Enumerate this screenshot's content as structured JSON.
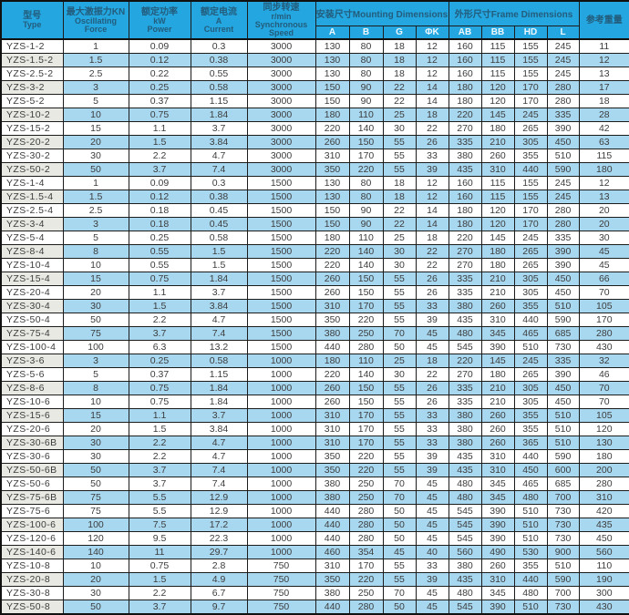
{
  "table": {
    "header": {
      "type": {
        "lines": [
          "型号",
          "Type"
        ]
      },
      "force": {
        "lines": [
          "最大激振力KN",
          "Oscillating",
          "Force"
        ]
      },
      "power": {
        "lines": [
          "额定功率",
          "kW",
          "Power"
        ]
      },
      "current": {
        "lines": [
          "额定电流",
          "A",
          "Current"
        ]
      },
      "speed": {
        "lines": [
          "同步转速",
          "r/min",
          "Synchronous",
          "Speed"
        ]
      },
      "mounting": {
        "label": "安装尺寸Mounting Dimensions",
        "subs": [
          "A",
          "B",
          "G",
          "ΦK"
        ]
      },
      "frame": {
        "label": "外形尺寸Frame Dimensions",
        "subs": [
          "AB",
          "BB",
          "HD",
          "L"
        ]
      },
      "weight": {
        "label": "参考重量"
      }
    },
    "rows": [
      [
        "YZS-1-2",
        "1",
        "0.09",
        "0.3",
        "3000",
        "130",
        "80",
        "18",
        "12",
        "160",
        "115",
        "155",
        "245",
        "11"
      ],
      [
        "YZS-1.5-2",
        "1.5",
        "0.12",
        "0.38",
        "3000",
        "130",
        "80",
        "18",
        "12",
        "160",
        "115",
        "155",
        "245",
        "12"
      ],
      [
        "YZS-2.5-2",
        "2.5",
        "0.22",
        "0.55",
        "3000",
        "130",
        "80",
        "18",
        "12",
        "160",
        "115",
        "155",
        "245",
        "13"
      ],
      [
        "YZS-3-2",
        "3",
        "0.25",
        "0.58",
        "3000",
        "150",
        "90",
        "22",
        "14",
        "180",
        "120",
        "170",
        "280",
        "17"
      ],
      [
        "YZS-5-2",
        "5",
        "0.37",
        "1.15",
        "3000",
        "150",
        "90",
        "22",
        "14",
        "180",
        "120",
        "170",
        "280",
        "18"
      ],
      [
        "YZS-10-2",
        "10",
        "0.75",
        "1.84",
        "3000",
        "180",
        "110",
        "25",
        "18",
        "220",
        "145",
        "245",
        "335",
        "28"
      ],
      [
        "YZS-15-2",
        "15",
        "1.1",
        "3.7",
        "3000",
        "220",
        "140",
        "30",
        "22",
        "270",
        "180",
        "265",
        "390",
        "42"
      ],
      [
        "YZS-20-2",
        "20",
        "1.5",
        "3.84",
        "3000",
        "260",
        "150",
        "55",
        "26",
        "335",
        "210",
        "305",
        "450",
        "63"
      ],
      [
        "YZS-30-2",
        "30",
        "2.2",
        "4.7",
        "3000",
        "310",
        "170",
        "55",
        "33",
        "380",
        "260",
        "355",
        "510",
        "115"
      ],
      [
        "YZS-50-2",
        "50",
        "3.7",
        "7.4",
        "3000",
        "350",
        "220",
        "55",
        "39",
        "435",
        "310",
        "440",
        "590",
        "180"
      ],
      [
        "YZS-1-4",
        "1",
        "0.09",
        "0.3",
        "1500",
        "130",
        "80",
        "18",
        "12",
        "160",
        "115",
        "155",
        "245",
        "12"
      ],
      [
        "YZS-1.5-4",
        "1.5",
        "0.12",
        "0.38",
        "1500",
        "130",
        "80",
        "18",
        "12",
        "160",
        "115",
        "155",
        "245",
        "13"
      ],
      [
        "YZS-2.5-4",
        "2.5",
        "0.18",
        "0.45",
        "1500",
        "150",
        "90",
        "22",
        "14",
        "180",
        "120",
        "170",
        "280",
        "20"
      ],
      [
        "YZS-3-4",
        "3",
        "0.18",
        "0.45",
        "1500",
        "150",
        "90",
        "22",
        "14",
        "180",
        "120",
        "170",
        "280",
        "20"
      ],
      [
        "YZS-5-4",
        "5",
        "0.25",
        "0.58",
        "1500",
        "180",
        "110",
        "25",
        "18",
        "220",
        "145",
        "245",
        "335",
        "30"
      ],
      [
        "YZS-8-4",
        "8",
        "0.55",
        "1.5",
        "1500",
        "220",
        "140",
        "30",
        "22",
        "270",
        "180",
        "265",
        "390",
        "45"
      ],
      [
        "YZS-10-4",
        "10",
        "0.55",
        "1.5",
        "1500",
        "220",
        "140",
        "30",
        "22",
        "270",
        "180",
        "265",
        "390",
        "45"
      ],
      [
        "YZS-15-4",
        "15",
        "0.75",
        "1.84",
        "1500",
        "260",
        "150",
        "55",
        "26",
        "335",
        "210",
        "305",
        "450",
        "66"
      ],
      [
        "YZS-20-4",
        "20",
        "1.1",
        "3.7",
        "1500",
        "260",
        "150",
        "55",
        "26",
        "335",
        "210",
        "305",
        "450",
        "70"
      ],
      [
        "YZS-30-4",
        "30",
        "1.5",
        "3.84",
        "1500",
        "310",
        "170",
        "55",
        "33",
        "380",
        "260",
        "355",
        "510",
        "105"
      ],
      [
        "YZS-50-4",
        "50",
        "2.2",
        "4.7",
        "1500",
        "350",
        "220",
        "55",
        "39",
        "435",
        "310",
        "440",
        "590",
        "170"
      ],
      [
        "YZS-75-4",
        "75",
        "3.7",
        "7.4",
        "1500",
        "380",
        "250",
        "70",
        "45",
        "480",
        "345",
        "465",
        "685",
        "280"
      ],
      [
        "YZS-100-4",
        "100",
        "6.3",
        "13.2",
        "1500",
        "440",
        "280",
        "50",
        "45",
        "545",
        "390",
        "510",
        "730",
        "430"
      ],
      [
        "YZS-3-6",
        "3",
        "0.25",
        "0.58",
        "1000",
        "180",
        "110",
        "25",
        "18",
        "220",
        "145",
        "245",
        "335",
        "32"
      ],
      [
        "YZS-5-6",
        "5",
        "0.37",
        "1.15",
        "1000",
        "220",
        "140",
        "30",
        "22",
        "270",
        "180",
        "265",
        "390",
        "46"
      ],
      [
        "YZS-8-6",
        "8",
        "0.75",
        "1.84",
        "1000",
        "260",
        "150",
        "55",
        "26",
        "335",
        "210",
        "305",
        "450",
        "70"
      ],
      [
        "YZS-10-6",
        "10",
        "0.75",
        "1.84",
        "1000",
        "260",
        "150",
        "55",
        "26",
        "335",
        "210",
        "305",
        "450",
        "70"
      ],
      [
        "YZS-15-6",
        "15",
        "1.1",
        "3.7",
        "1000",
        "310",
        "170",
        "55",
        "33",
        "380",
        "260",
        "355",
        "510",
        "105"
      ],
      [
        "YZS-20-6",
        "20",
        "1.5",
        "3.84",
        "1000",
        "310",
        "170",
        "55",
        "33",
        "380",
        "260",
        "355",
        "510",
        "120"
      ],
      [
        "YZS-30-6B",
        "30",
        "2.2",
        "4.7",
        "1000",
        "310",
        "170",
        "55",
        "33",
        "380",
        "260",
        "365",
        "510",
        "130"
      ],
      [
        "YZS-30-6",
        "30",
        "2.2",
        "4.7",
        "1000",
        "350",
        "220",
        "55",
        "39",
        "435",
        "310",
        "440",
        "590",
        "180"
      ],
      [
        "YZS-50-6B",
        "50",
        "3.7",
        "7.4",
        "1000",
        "350",
        "220",
        "55",
        "39",
        "435",
        "310",
        "450",
        "600",
        "200"
      ],
      [
        "YZS-50-6",
        "50",
        "3.7",
        "7.4",
        "1000",
        "380",
        "250",
        "70",
        "45",
        "480",
        "345",
        "465",
        "685",
        "280"
      ],
      [
        "YZS-75-6B",
        "75",
        "5.5",
        "12.9",
        "1000",
        "380",
        "250",
        "70",
        "45",
        "480",
        "345",
        "480",
        "700",
        "310"
      ],
      [
        "YZS-75-6",
        "75",
        "5.5",
        "12.9",
        "1000",
        "440",
        "280",
        "50",
        "45",
        "545",
        "390",
        "510",
        "730",
        "420"
      ],
      [
        "YZS-100-6",
        "100",
        "7.5",
        "17.2",
        "1000",
        "440",
        "280",
        "50",
        "45",
        "545",
        "390",
        "510",
        "730",
        "435"
      ],
      [
        "YZS-120-6",
        "120",
        "9.5",
        "22.3",
        "1000",
        "440",
        "280",
        "50",
        "45",
        "545",
        "390",
        "510",
        "730",
        "450"
      ],
      [
        "YZS-140-6",
        "140",
        "11",
        "29.7",
        "1000",
        "460",
        "354",
        "45",
        "40",
        "560",
        "490",
        "530",
        "900",
        "560"
      ],
      [
        "YZS-10-8",
        "10",
        "0.75",
        "2.8",
        "750",
        "310",
        "170",
        "55",
        "33",
        "380",
        "260",
        "355",
        "510",
        "110"
      ],
      [
        "YZS-20-8",
        "20",
        "1.5",
        "4.9",
        "750",
        "350",
        "220",
        "55",
        "39",
        "435",
        "310",
        "440",
        "590",
        "190"
      ],
      [
        "YZS-30-8",
        "30",
        "2.2",
        "6.7",
        "750",
        "380",
        "250",
        "70",
        "45",
        "480",
        "345",
        "480",
        "700",
        "300"
      ],
      [
        "YZS-50-8",
        "50",
        "3.7",
        "9.7",
        "750",
        "440",
        "280",
        "50",
        "45",
        "545",
        "390",
        "510",
        "730",
        "430"
      ]
    ]
  },
  "colors": {
    "header_bg": "#24a7e0",
    "header_fg": "#235c7c",
    "subheader_fg": "#eef8fe",
    "stripe_blue": "#a8d8f0",
    "stripe_gray": "#e9e9e4",
    "border": "#1c1c1c"
  }
}
